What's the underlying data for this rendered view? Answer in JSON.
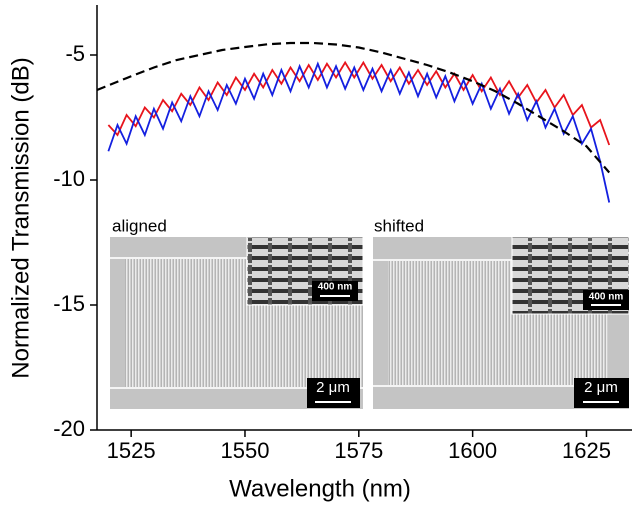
{
  "chart_data": {
    "type": "line",
    "x": [
      1520,
      1522,
      1524,
      1526,
      1528,
      1530,
      1532,
      1534,
      1536,
      1538,
      1540,
      1542,
      1544,
      1546,
      1548,
      1550,
      1552,
      1554,
      1556,
      1558,
      1560,
      1562,
      1564,
      1566,
      1568,
      1570,
      1572,
      1574,
      1576,
      1578,
      1580,
      1582,
      1584,
      1586,
      1588,
      1590,
      1592,
      1594,
      1596,
      1598,
      1600,
      1602,
      1604,
      1606,
      1608,
      1610,
      1612,
      1614,
      1616,
      1618,
      1620,
      1622,
      1624,
      1626,
      1628,
      1630
    ],
    "series": [
      {
        "color": "#e8141c",
        "values": [
          -7.8,
          -8.2,
          -7.4,
          -7.85,
          -7.1,
          -7.5,
          -6.8,
          -7.25,
          -6.55,
          -7.0,
          -6.3,
          -6.8,
          -6.1,
          -6.6,
          -5.9,
          -6.4,
          -5.75,
          -6.3,
          -5.6,
          -6.15,
          -5.5,
          -6.05,
          -5.4,
          -6.0,
          -5.35,
          -5.9,
          -5.3,
          -5.9,
          -5.3,
          -5.95,
          -5.4,
          -6.05,
          -5.5,
          -6.15,
          -5.6,
          -6.2,
          -5.65,
          -6.3,
          -5.75,
          -6.4,
          -5.8,
          -6.45,
          -5.9,
          -6.6,
          -6.05,
          -6.7,
          -6.2,
          -6.9,
          -6.4,
          -7.1,
          -6.6,
          -7.4,
          -7.0,
          -7.9,
          -7.6,
          -8.6
        ]
      },
      {
        "color": "#1420e0",
        "values": [
          -8.85,
          -7.8,
          -8.55,
          -7.45,
          -8.2,
          -7.15,
          -7.95,
          -6.9,
          -7.65,
          -6.65,
          -7.45,
          -6.45,
          -7.2,
          -6.2,
          -6.95,
          -5.95,
          -6.75,
          -5.75,
          -6.6,
          -5.6,
          -6.45,
          -5.45,
          -6.3,
          -5.35,
          -6.3,
          -5.45,
          -6.35,
          -5.5,
          -6.4,
          -5.55,
          -6.45,
          -5.6,
          -6.55,
          -5.7,
          -6.65,
          -5.75,
          -6.7,
          -5.85,
          -6.85,
          -6.0,
          -6.95,
          -6.15,
          -7.15,
          -6.35,
          -7.35,
          -6.55,
          -7.6,
          -6.85,
          -7.9,
          -7.15,
          -8.15,
          -7.45,
          -8.55,
          -7.95,
          -9.25,
          -10.9
        ]
      },
      {
        "color": "#000000",
        "dashed": true,
        "x": [
          1517.5,
          1525,
          1530,
          1535,
          1540,
          1545,
          1550,
          1555,
          1560,
          1565,
          1570,
          1575,
          1580,
          1585,
          1590,
          1595,
          1600,
          1605,
          1610,
          1615,
          1620,
          1625,
          1630
        ],
        "values": [
          -6.4,
          -5.85,
          -5.5,
          -5.2,
          -5.0,
          -4.8,
          -4.68,
          -4.57,
          -4.52,
          -4.52,
          -4.58,
          -4.7,
          -4.9,
          -5.15,
          -5.4,
          -5.7,
          -6.05,
          -6.45,
          -6.95,
          -7.5,
          -8.05,
          -8.65,
          -9.7
        ]
      }
    ],
    "xlabel": "Wavelength (nm)",
    "ylabel": "Normalized Transmission (dB)",
    "xlim": [
      1517.5,
      1635
    ],
    "ylim": [
      -20,
      -3
    ],
    "xticks": [
      1525,
      1550,
      1575,
      1600,
      1625
    ],
    "yticks": [
      -20,
      -15,
      -10,
      -5
    ],
    "insets": [
      {
        "label": "aligned",
        "scale_small": "400 nm",
        "scale_large": "2 μm"
      },
      {
        "label": "shifted",
        "scale_small": "400 nm",
        "scale_large": "2 μm"
      }
    ]
  }
}
